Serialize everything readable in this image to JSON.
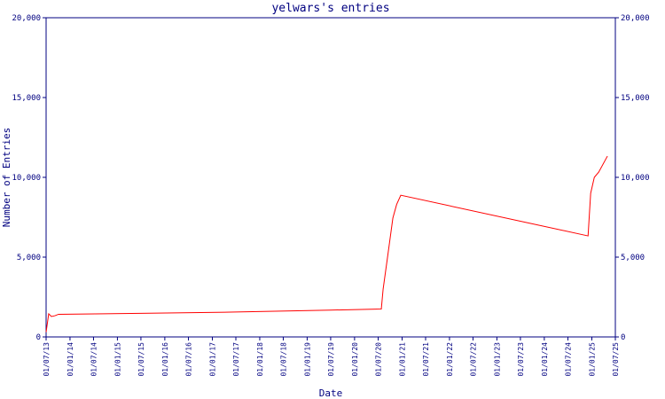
{
  "chart_data": {
    "type": "line",
    "title": "yelwars's entries",
    "xlabel": "Date",
    "ylabel": "Number of Entries",
    "x": [
      "2013-07-01",
      "2013-07-21",
      "2013-08-11",
      "2013-09-07",
      "2013-10-05",
      "2015-07-01",
      "2017-07-01",
      "2019-07-01",
      "2020-07-25",
      "2020-08-08",
      "2020-09-11",
      "2020-10-22",
      "2020-11-20",
      "2020-12-22",
      "2024-12-03",
      "2024-12-23",
      "2025-01-20",
      "2025-02-23",
      "2025-05-01"
    ],
    "series": [
      {
        "name": "entries",
        "color": "#ff0000",
        "values": [
          300,
          1450,
          1280,
          1330,
          1420,
          1480,
          1560,
          1680,
          1750,
          3000,
          5000,
          7450,
          8300,
          8880,
          6330,
          9000,
          10000,
          10330,
          11330
        ]
      }
    ],
    "xlim": [
      "2013-07-01",
      "2025-07-01"
    ],
    "xticks": [
      {
        "value": "2013-07-01",
        "label": "01/07/13"
      },
      {
        "value": "2014-01-01",
        "label": "01/01/14"
      },
      {
        "value": "2014-07-01",
        "label": "01/07/14"
      },
      {
        "value": "2015-01-01",
        "label": "01/01/15"
      },
      {
        "value": "2015-07-01",
        "label": "01/07/15"
      },
      {
        "value": "2016-01-01",
        "label": "01/01/16"
      },
      {
        "value": "2016-07-01",
        "label": "01/07/16"
      },
      {
        "value": "2017-01-01",
        "label": "01/01/17"
      },
      {
        "value": "2017-07-01",
        "label": "01/07/17"
      },
      {
        "value": "2018-01-01",
        "label": "01/01/18"
      },
      {
        "value": "2018-07-01",
        "label": "01/07/18"
      },
      {
        "value": "2019-01-01",
        "label": "01/01/19"
      },
      {
        "value": "2019-07-01",
        "label": "01/07/19"
      },
      {
        "value": "2020-01-01",
        "label": "01/01/20"
      },
      {
        "value": "2020-07-01",
        "label": "01/07/20"
      },
      {
        "value": "2021-01-01",
        "label": "01/01/21"
      },
      {
        "value": "2021-07-01",
        "label": "01/07/21"
      },
      {
        "value": "2022-01-01",
        "label": "01/01/22"
      },
      {
        "value": "2022-07-01",
        "label": "01/07/22"
      },
      {
        "value": "2023-01-01",
        "label": "01/01/23"
      },
      {
        "value": "2023-07-01",
        "label": "01/07/23"
      },
      {
        "value": "2024-01-01",
        "label": "01/01/24"
      },
      {
        "value": "2024-07-01",
        "label": "01/07/24"
      },
      {
        "value": "2025-01-01",
        "label": "01/01/25"
      },
      {
        "value": "2025-07-01",
        "label": "01/07/25"
      }
    ],
    "ylim": [
      0,
      20000
    ],
    "yticks": [
      0,
      {
        "value": 5000,
        "label": "5,000"
      },
      {
        "value": 10000,
        "label": "10,000"
      },
      {
        "value": 15000,
        "label": "15,000"
      },
      {
        "value": 20000,
        "label": "20,000"
      }
    ],
    "right_axis": true
  }
}
